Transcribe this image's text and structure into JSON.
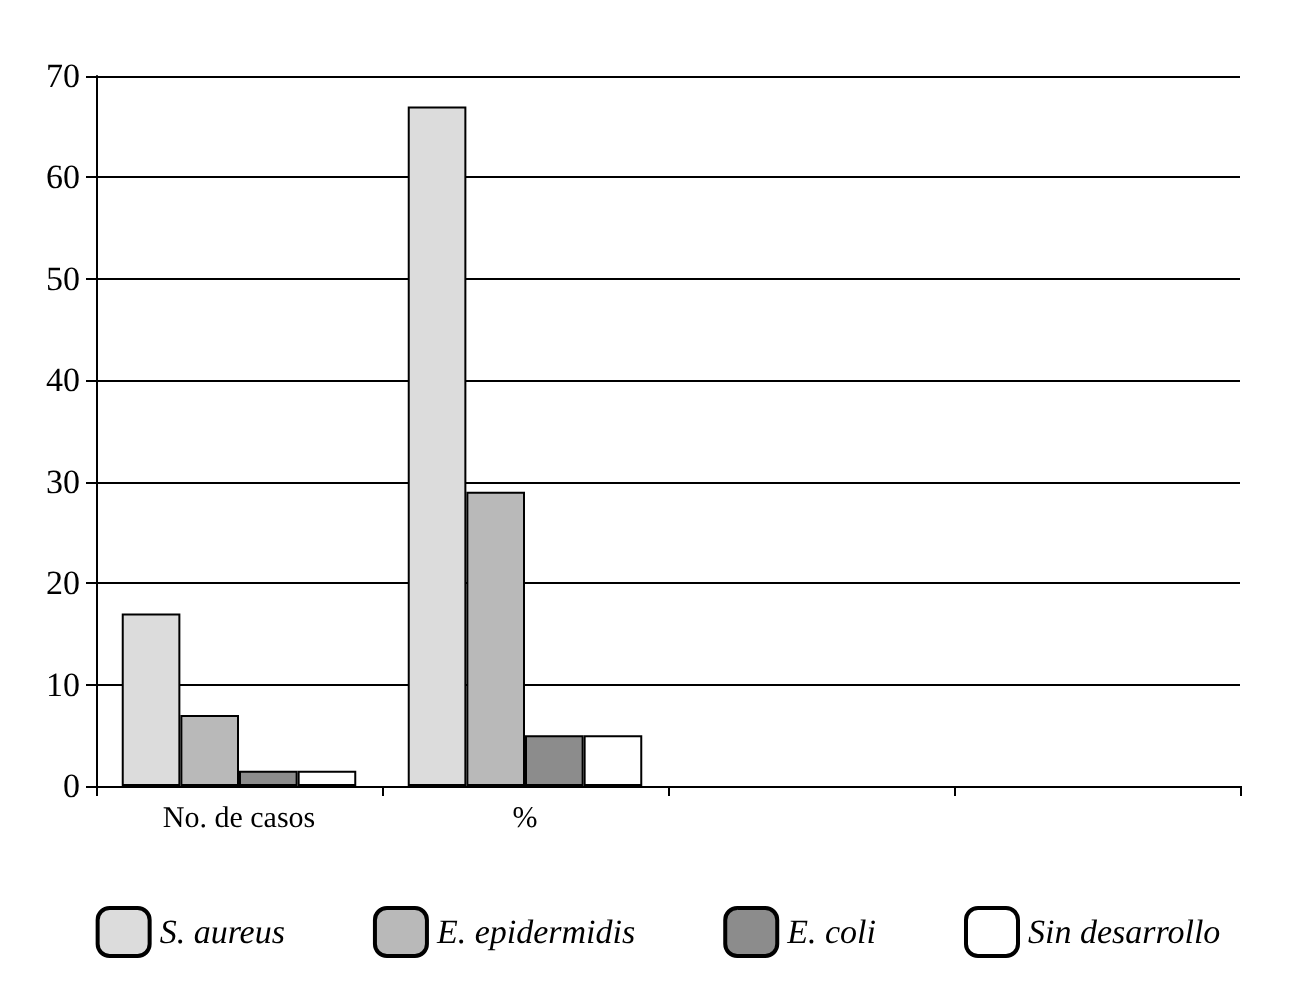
{
  "chart_data": {
    "type": "bar",
    "categories": [
      "No. de casos",
      "%",
      null,
      null
    ],
    "series": [
      {
        "name": "S. aureus",
        "color": "#dcdcdc",
        "values": [
          17,
          67,
          null,
          null
        ]
      },
      {
        "name": "E. epidermidis",
        "color": "#b9b9b9",
        "values": [
          7,
          29,
          null,
          null
        ]
      },
      {
        "name": "E. coli",
        "color": "#8c8c8c",
        "values": [
          1.5,
          5,
          null,
          null
        ]
      },
      {
        "name": "Sin desarrollo",
        "color": "#ffffff",
        "values": [
          1.5,
          5,
          null,
          null
        ]
      }
    ],
    "ylim": [
      0,
      70
    ],
    "yticks": [
      0,
      10,
      20,
      30,
      40,
      50,
      60,
      70
    ],
    "grid": "y",
    "legend": "bottom"
  }
}
